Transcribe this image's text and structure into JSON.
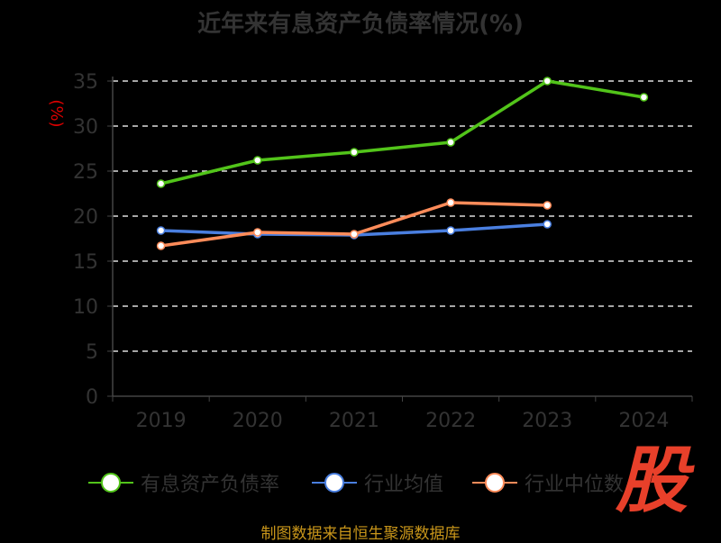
{
  "chart_data": {
    "type": "line",
    "title": "近年来有息资产负债率情况(%)",
    "ylabel": "(%)",
    "xlabel": "",
    "categories": [
      "2019",
      "2020",
      "2021",
      "2022",
      "2023",
      "2024"
    ],
    "ylim": [
      0,
      35
    ],
    "yticks": [
      "0",
      "5",
      "10",
      "15",
      "20",
      "25",
      "30",
      "35"
    ],
    "grid": true,
    "legend_position": "bottom",
    "series": [
      {
        "name": "有息资产负债率",
        "color": "#52c41a",
        "values": [
          23.6,
          26.2,
          27.1,
          28.2,
          35.0,
          33.2
        ]
      },
      {
        "name": "行业均值",
        "color": "#4a7fe0",
        "values": [
          18.4,
          18.0,
          17.9,
          18.4,
          19.1,
          null
        ]
      },
      {
        "name": "行业中位数",
        "color": "#ff8c5a",
        "values": [
          16.7,
          18.2,
          18.0,
          21.5,
          21.2,
          null
        ]
      }
    ]
  },
  "source": "制图数据来自恒生聚源数据库",
  "logo": "股"
}
